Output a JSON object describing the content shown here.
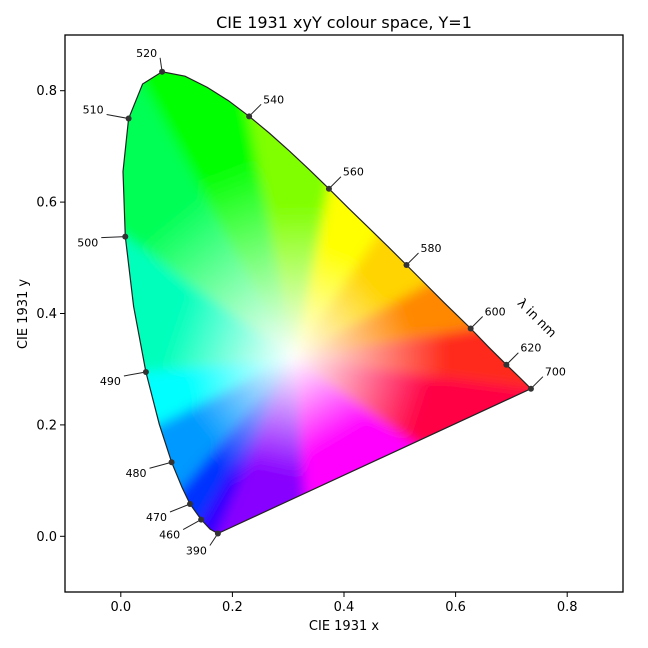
{
  "chart_data": {
    "type": "scatter",
    "title": "CIE 1931 xyY colour space, Y=1",
    "xlabel": "CIE 1931 x",
    "ylabel": "CIE 1931 y",
    "xlim": [
      -0.1,
      0.9
    ],
    "ylim": [
      -0.1,
      0.9
    ],
    "x_ticks": [
      "0.0",
      "0.2",
      "0.4",
      "0.6",
      "0.8"
    ],
    "y_ticks": [
      "0.0",
      "0.2",
      "0.4",
      "0.6",
      "0.8"
    ],
    "grid": false,
    "locus_annotation": "λ in nm",
    "points": [
      {
        "label": "390",
        "x": 0.174,
        "y": 0.005
      },
      {
        "label": "460",
        "x": 0.144,
        "y": 0.03
      },
      {
        "label": "470",
        "x": 0.124,
        "y": 0.058
      },
      {
        "label": "480",
        "x": 0.091,
        "y": 0.133
      },
      {
        "label": "490",
        "x": 0.045,
        "y": 0.295
      },
      {
        "label": "500",
        "x": 0.008,
        "y": 0.538
      },
      {
        "label": "510",
        "x": 0.014,
        "y": 0.75
      },
      {
        "label": "520",
        "x": 0.074,
        "y": 0.834
      },
      {
        "label": "540",
        "x": 0.23,
        "y": 0.754
      },
      {
        "label": "560",
        "x": 0.373,
        "y": 0.624
      },
      {
        "label": "580",
        "x": 0.512,
        "y": 0.487
      },
      {
        "label": "600",
        "x": 0.627,
        "y": 0.373
      },
      {
        "label": "620",
        "x": 0.691,
        "y": 0.308
      },
      {
        "label": "700",
        "x": 0.735,
        "y": 0.265
      }
    ],
    "colors": {
      "point": "#333333",
      "locus_line": "#222222",
      "spectral_anchor_colors": {
        "red": "#ff0044",
        "orange": "#ff8800",
        "yellow": "#ffff00",
        "green": "#00ff00",
        "cyan": "#00ffff",
        "blue": "#0033ff",
        "violet": "#8800ff",
        "magenta": "#ff00ff",
        "white": "#ffffff"
      }
    }
  }
}
